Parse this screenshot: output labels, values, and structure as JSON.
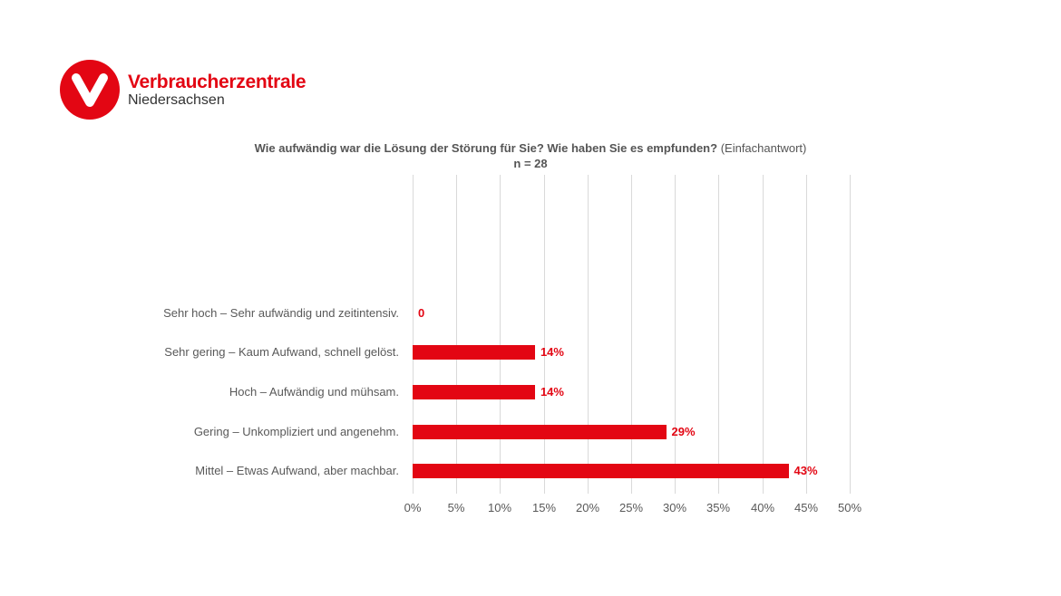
{
  "logo": {
    "name": "Verbraucherzentrale",
    "region": "Niedersachsen",
    "brand_color": "#e30613"
  },
  "chart_title": {
    "question": "Wie aufwändig war die Lösung der Störung für Sie? Wie haben Sie es empfunden?",
    "note": "(Einfachantwort)",
    "n": "n = 28"
  },
  "axis": {
    "ticks": [
      "0%",
      "5%",
      "10%",
      "15%",
      "20%",
      "25%",
      "30%",
      "35%",
      "40%",
      "45%",
      "50%"
    ]
  },
  "bars": [
    {
      "label": "Sehr hoch – Sehr aufwändig und zeitintensiv.",
      "value": 0,
      "display": "0"
    },
    {
      "label": "Sehr gering – Kaum Aufwand, schnell gelöst.",
      "value": 14,
      "display": "14%"
    },
    {
      "label": "Hoch – Aufwändig und mühsam.",
      "value": 14,
      "display": "14%"
    },
    {
      "label": "Gering – Unkompliziert und angenehm.",
      "value": 29,
      "display": "29%"
    },
    {
      "label": "Mittel – Etwas Aufwand, aber machbar.",
      "value": 43,
      "display": "43%"
    }
  ],
  "chart_data": {
    "type": "bar",
    "orientation": "horizontal",
    "title": "Wie aufwändig war die Lösung der Störung für Sie? Wie haben Sie es empfunden? (Einfachantwort)",
    "subtitle": "n = 28",
    "categories": [
      "Sehr hoch – Sehr aufwändig und zeitintensiv.",
      "Sehr gering – Kaum Aufwand, schnell gelöst.",
      "Hoch – Aufwändig und mühsam.",
      "Gering – Unkompliziert und angenehm.",
      "Mittel – Etwas Aufwand, aber machbar."
    ],
    "values": [
      0,
      14,
      14,
      29,
      43
    ],
    "data_labels": [
      "0",
      "14%",
      "14%",
      "29%",
      "43%"
    ],
    "xlabel": "",
    "ylabel": "",
    "xlim": [
      0,
      50
    ],
    "x_ticks": [
      "0%",
      "5%",
      "10%",
      "15%",
      "20%",
      "25%",
      "30%",
      "35%",
      "40%",
      "45%",
      "50%"
    ],
    "grid": "vertical",
    "legend": "none",
    "bar_color": "#e30613"
  }
}
